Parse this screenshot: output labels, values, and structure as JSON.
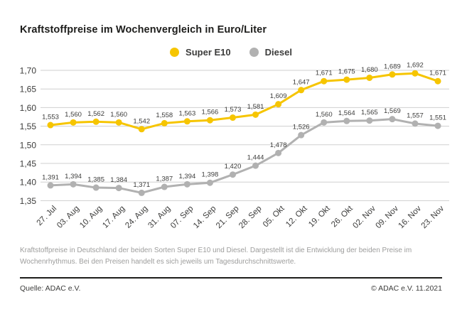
{
  "page": {
    "title": "Kraftstoffpreise im Wochenvergleich in Euro/Liter",
    "note": "Kraftstoffpreise in Deutschland der beiden Sorten Super E10 und Diesel. Dargestellt ist die Entwicklung der beiden Preise im Wochenrhythmus. Bei den Preisen handelt es sich jeweils um Tagesdurchschnittswerte.",
    "source": "Quelle: ADAC e.V.",
    "copyright": "© ADAC e.V. 11.2021"
  },
  "legend": [
    {
      "label": "Super E10",
      "color": "#f6c500"
    },
    {
      "label": "Diesel",
      "color": "#b1b1b1"
    }
  ],
  "colors": {
    "grid": "#cfcfcf",
    "axis_text": "#3c3c3b",
    "value_label": "#3c3c3b"
  },
  "chart_data": {
    "type": "line",
    "title": "Kraftstoffpreise im Wochenvergleich in Euro/Liter",
    "xlabel": "",
    "ylabel": "Euro/Liter",
    "categories": [
      "27. Jul",
      "03. Aug",
      "10. Aug",
      "17. Aug",
      "24. Aug",
      "31. Aug",
      "07. Sep",
      "14. Sep",
      "21. Sep",
      "28. Sep",
      "05. Okt",
      "12. Okt",
      "19. Okt",
      "26. Okt",
      "02. Nov",
      "09. Nov",
      "16. Nov",
      "23. Nov"
    ],
    "series": [
      {
        "name": "Super E10",
        "color": "#f6c500",
        "values": [
          1.553,
          1.56,
          1.562,
          1.56,
          1.542,
          1.558,
          1.563,
          1.566,
          1.573,
          1.581,
          1.609,
          1.647,
          1.671,
          1.675,
          1.68,
          1.689,
          1.692,
          1.671
        ]
      },
      {
        "name": "Diesel",
        "color": "#b1b1b1",
        "values": [
          1.391,
          1.394,
          1.385,
          1.384,
          1.371,
          1.387,
          1.394,
          1.398,
          1.42,
          1.444,
          1.478,
          1.526,
          1.56,
          1.564,
          1.565,
          1.569,
          1.557,
          1.551
        ]
      }
    ],
    "y_ticks": [
      1.7,
      1.65,
      1.6,
      1.55,
      1.5,
      1.45,
      1.4,
      1.35
    ],
    "ylim": [
      1.33,
      1.72
    ],
    "grid": "horizontal",
    "legend_position": "top-center",
    "decimal_separator": ",",
    "value_decimals": 3,
    "tick_decimals": 2,
    "point_labels": true
  }
}
